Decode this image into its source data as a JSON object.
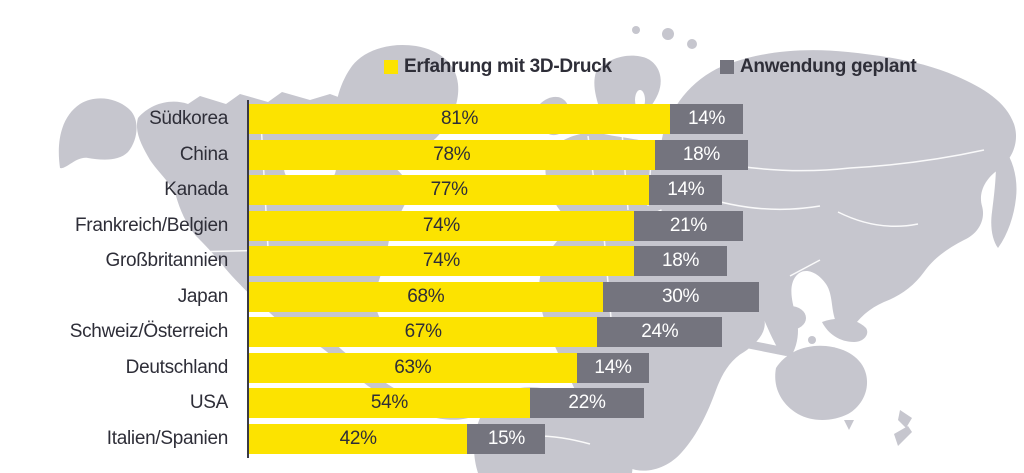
{
  "page": {
    "background": "#ffffff"
  },
  "legend": {
    "position": "top",
    "items": [
      {
        "label": "Erfahrung mit 3D-Druck",
        "color": "#fce300"
      },
      {
        "label": "Anwendung geplant",
        "color": "#74747e"
      }
    ]
  },
  "chart_data": {
    "type": "bar",
    "orientation": "horizontal",
    "stacked": true,
    "title": "",
    "xlabel": "",
    "ylabel": "",
    "xlim": [
      0,
      100
    ],
    "grid": false,
    "legend_position": "top",
    "background": "world-map-light-gray",
    "value_suffix": "%",
    "categories": [
      "Südkorea",
      "China",
      "Kanada",
      "Frankreich/Belgien",
      "Großbritannien",
      "Japan",
      "Schweiz/Österreich",
      "Deutschland",
      "USA",
      "Italien/Spanien"
    ],
    "series": [
      {
        "name": "Erfahrung mit 3D-Druck",
        "color": "#fce300",
        "values": [
          81,
          78,
          77,
          74,
          74,
          68,
          67,
          63,
          54,
          42
        ],
        "value_labels": [
          "81%",
          "78%",
          "77%",
          "74%",
          "74%",
          "68%",
          "67%",
          "63%",
          "54%",
          "42%"
        ]
      },
      {
        "name": "Anwendung geplant",
        "color": "#74747e",
        "values": [
          14,
          18,
          14,
          21,
          18,
          30,
          24,
          14,
          22,
          15
        ],
        "value_labels": [
          "14%",
          "18%",
          "14%",
          "21%",
          "18%",
          "30%",
          "24%",
          "14%",
          "22%",
          "15%"
        ]
      }
    ]
  },
  "colors": {
    "map": "#c6c6ce",
    "axis": "#3a3a44",
    "label_text": "#2e2e38",
    "value_on_experience": "#2e2e38",
    "value_on_planned": "#ffffff"
  }
}
